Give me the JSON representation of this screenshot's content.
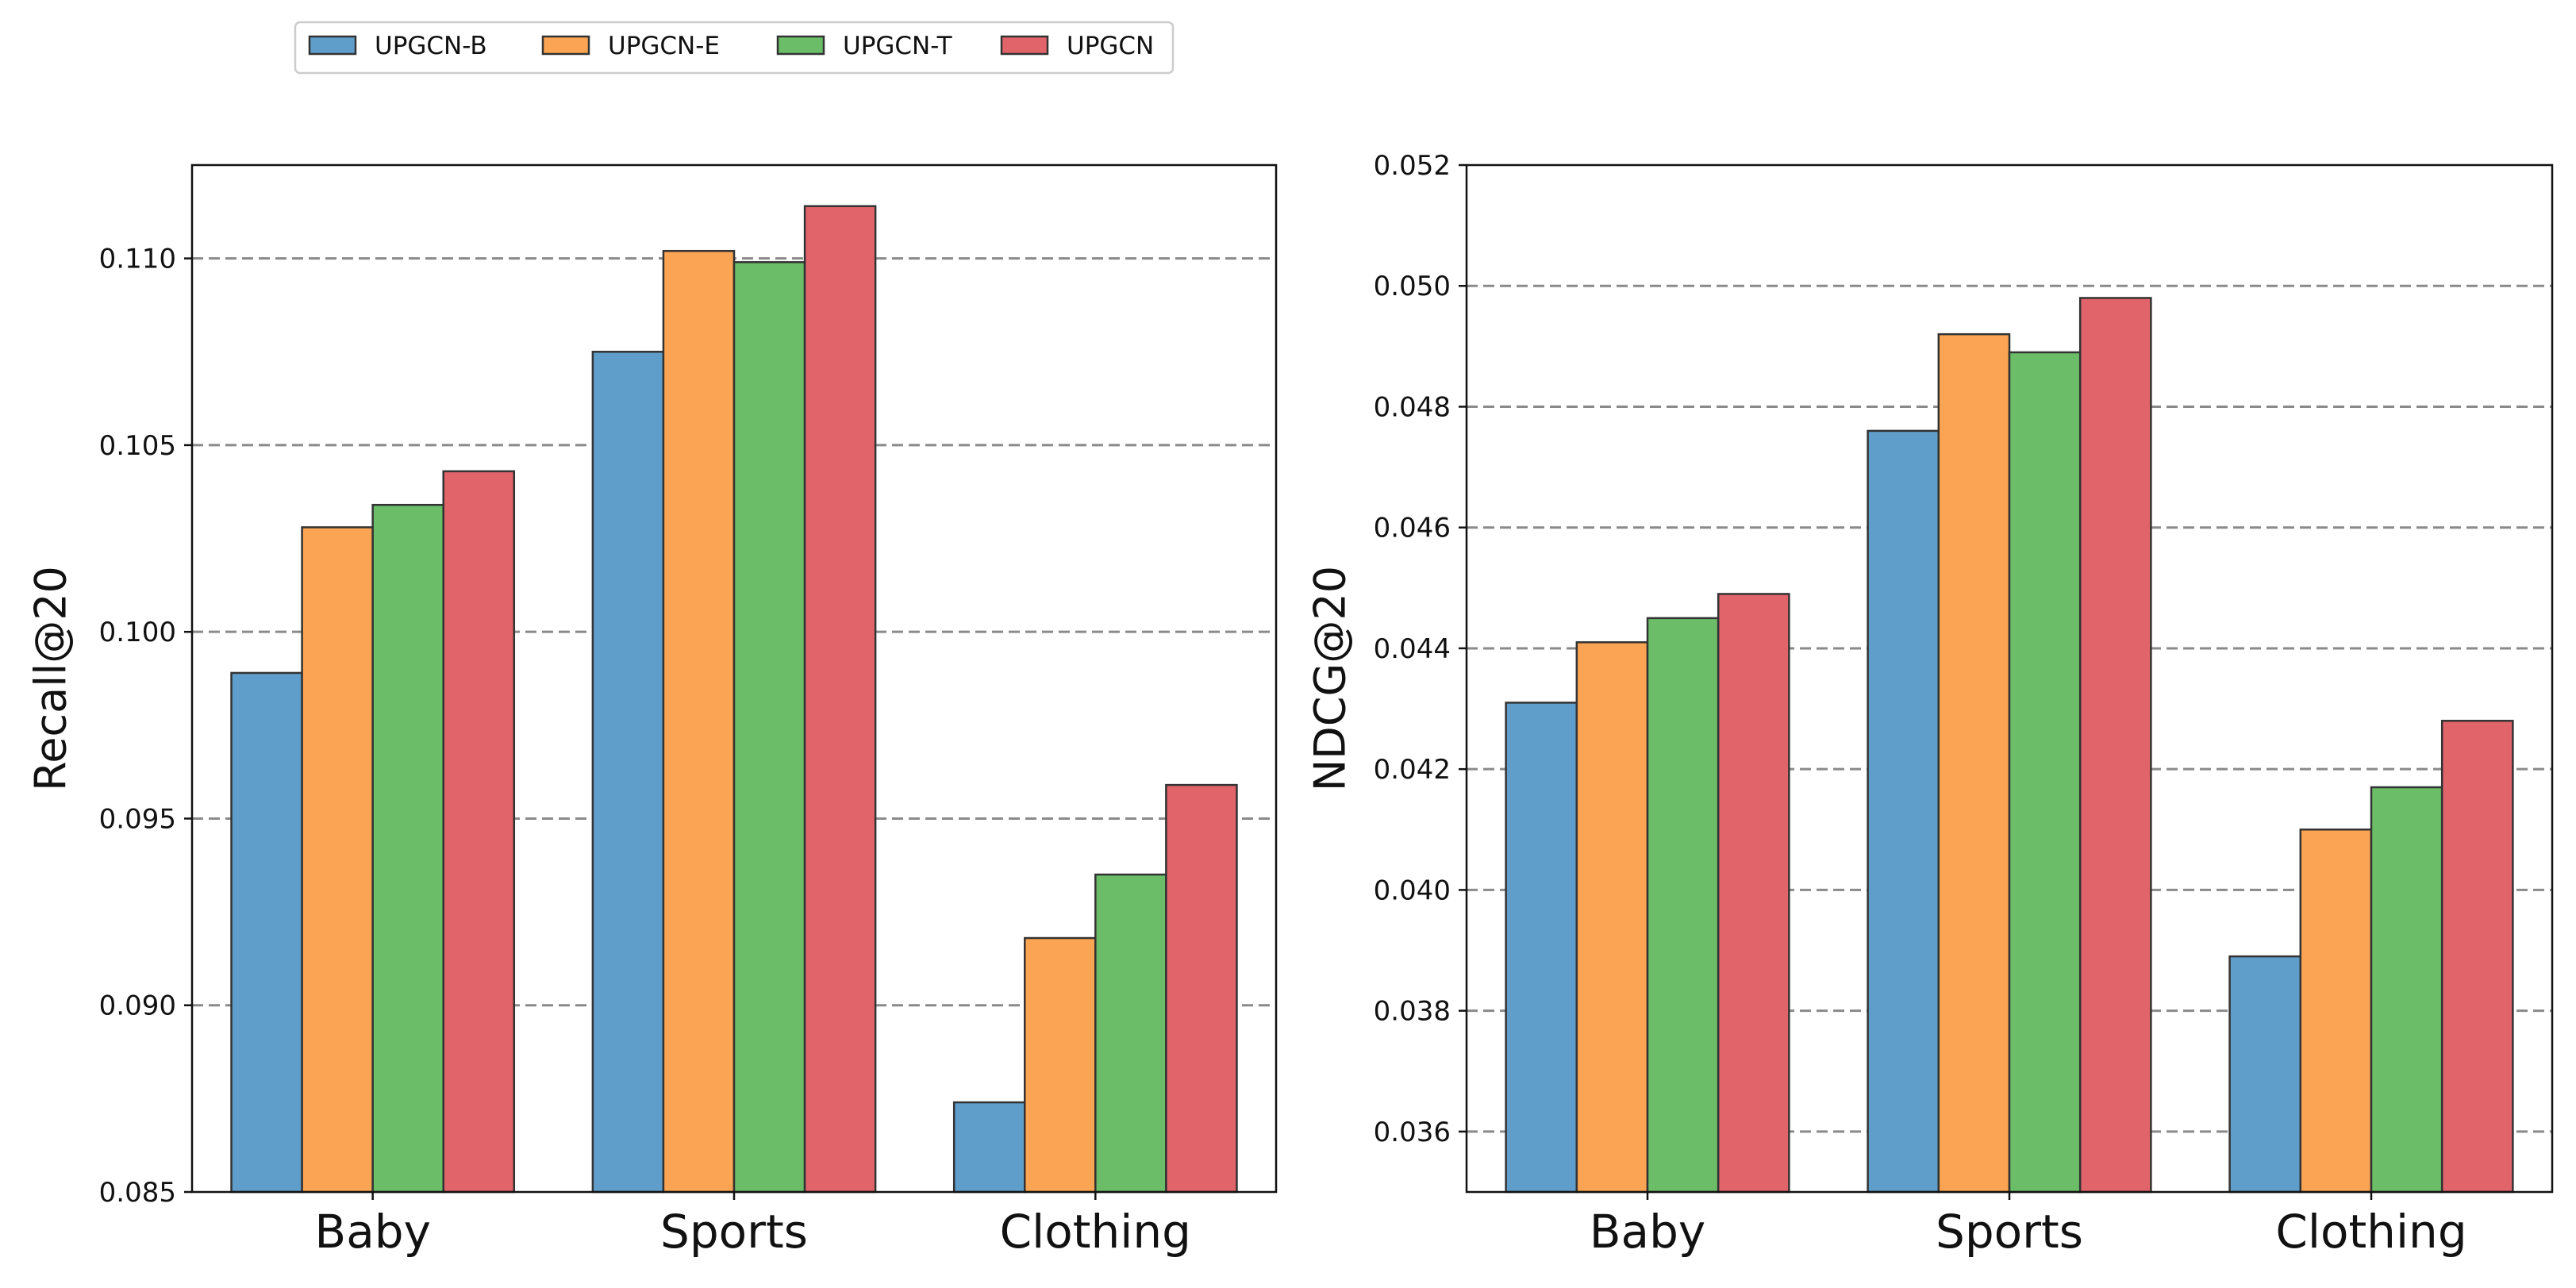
{
  "legend": {
    "entries": [
      "UPGCN-B",
      "UPGCN-E",
      "UPGCN-T",
      "UPGCN"
    ]
  },
  "colors": {
    "UPGCN-B": "#5f9ecb",
    "UPGCN-E": "#fba453",
    "UPGCN-T": "#6bbd68",
    "UPGCN": "#e0646a",
    "grid": "#8a8a8a",
    "edge": "#333333"
  },
  "chart_data": [
    {
      "type": "bar",
      "title": "",
      "xlabel": "",
      "ylabel": "Recall@20",
      "categories": [
        "Baby",
        "Sports",
        "Clothing"
      ],
      "ylim": [
        0.085,
        0.1125
      ],
      "yticks": [
        "0.085",
        "0.090",
        "0.095",
        "0.100",
        "0.105",
        "0.110"
      ],
      "grid": true,
      "legend_position": "top-left",
      "series": [
        {
          "name": "UPGCN-B",
          "values": [
            0.0989,
            0.1075,
            0.0874
          ]
        },
        {
          "name": "UPGCN-E",
          "values": [
            0.1028,
            0.1102,
            0.0918
          ]
        },
        {
          "name": "UPGCN-T",
          "values": [
            0.1034,
            0.1099,
            0.0935
          ]
        },
        {
          "name": "UPGCN",
          "values": [
            0.1043,
            0.1114,
            0.0959
          ]
        }
      ]
    },
    {
      "type": "bar",
      "title": "",
      "xlabel": "",
      "ylabel": "NDCG@20",
      "categories": [
        "Baby",
        "Sports",
        "Clothing"
      ],
      "ylim": [
        0.035,
        0.052
      ],
      "yticks": [
        "0.036",
        "0.038",
        "0.040",
        "0.042",
        "0.044",
        "0.046",
        "0.048",
        "0.050",
        "0.052"
      ],
      "grid": true,
      "series": [
        {
          "name": "UPGCN-B",
          "values": [
            0.0431,
            0.0476,
            0.0389
          ]
        },
        {
          "name": "UPGCN-E",
          "values": [
            0.0441,
            0.0492,
            0.041
          ]
        },
        {
          "name": "UPGCN-T",
          "values": [
            0.0445,
            0.0489,
            0.0417
          ]
        },
        {
          "name": "UPGCN",
          "values": [
            0.0449,
            0.0498,
            0.0428
          ]
        }
      ]
    }
  ]
}
